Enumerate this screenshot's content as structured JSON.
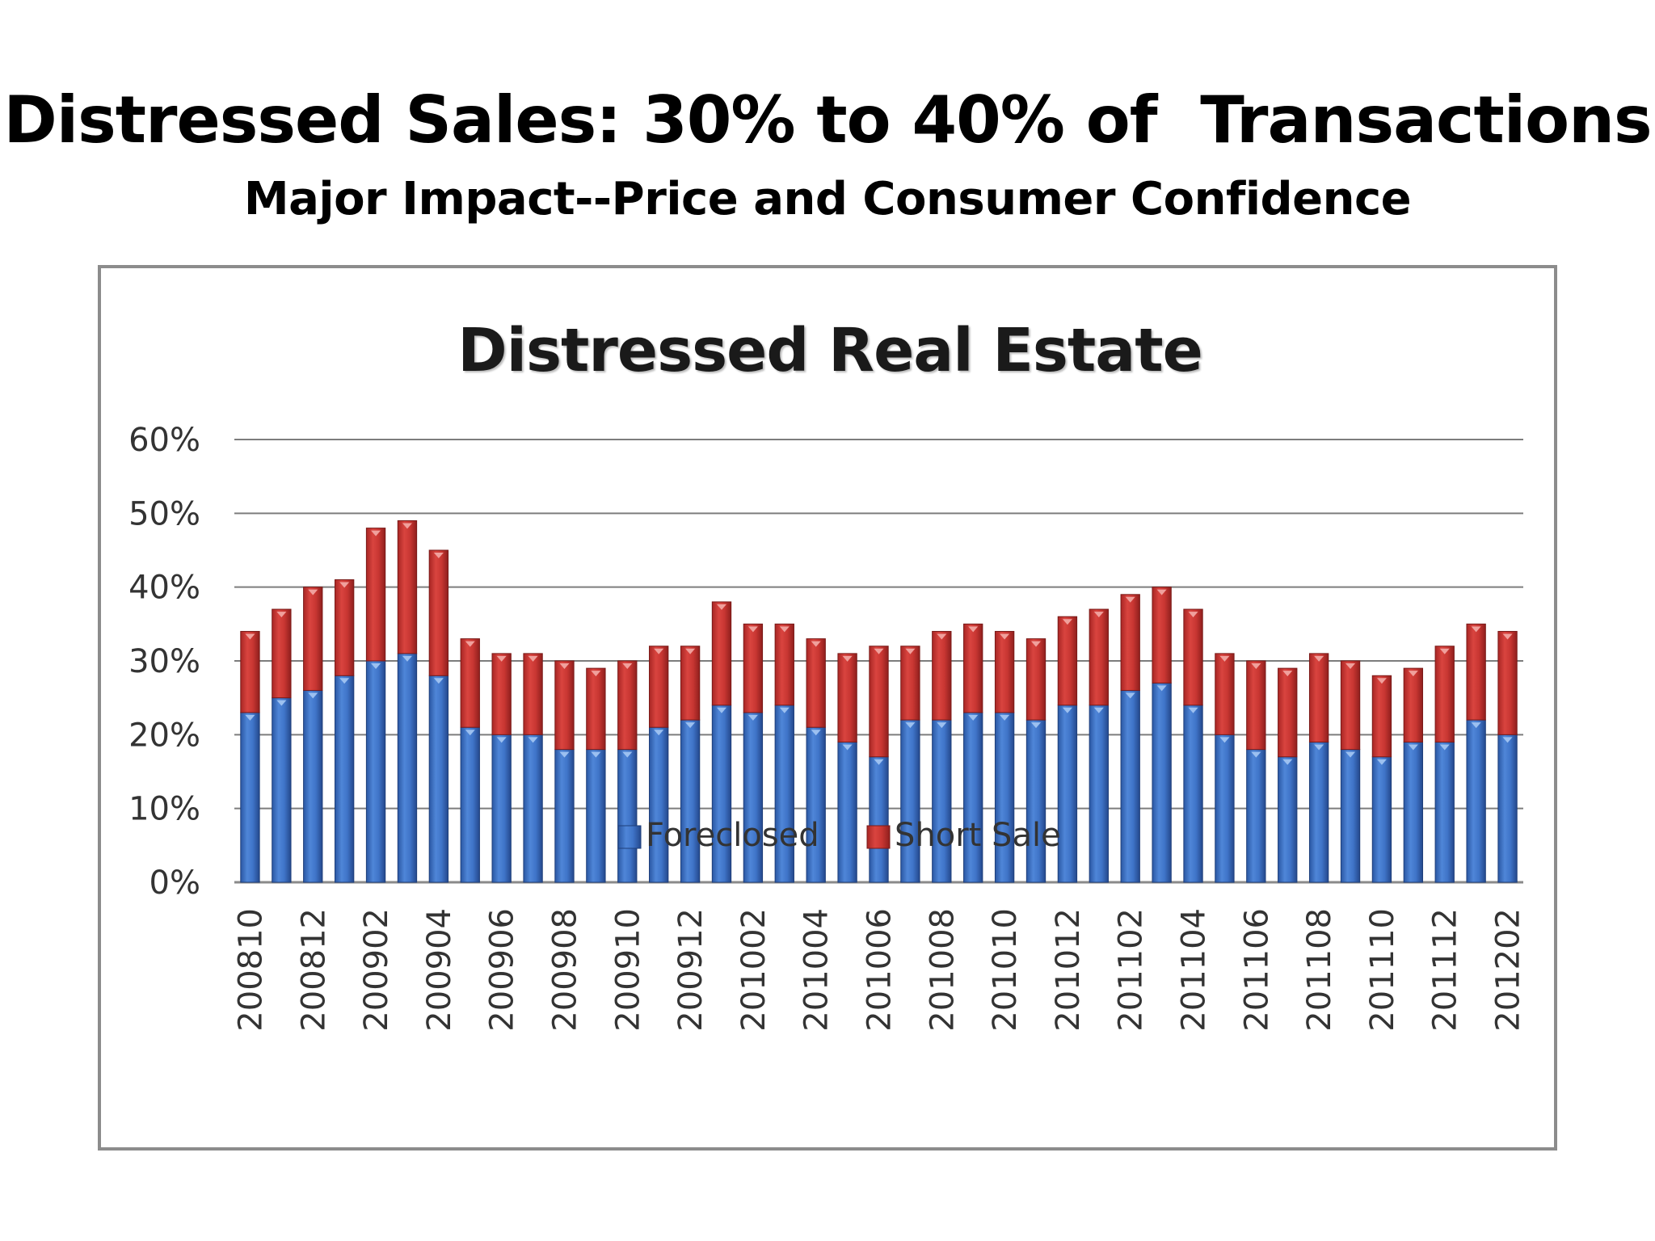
{
  "slide": {
    "title": "Distressed Sales: 30% to 40% of  Transactions",
    "subtitle": "Major Impact--Price and Consumer Confidence"
  },
  "chart_data": {
    "type": "bar",
    "stacked": true,
    "title": "Distressed Real Estate",
    "xlabel": "",
    "ylabel": "",
    "ylim": [
      0,
      0.6
    ],
    "y_ticks": [
      "0%",
      "10%",
      "20%",
      "30%",
      "40%",
      "50%",
      "60%"
    ],
    "grid": true,
    "legend_position": "bottom",
    "categories": [
      "200810",
      "200811",
      "200812",
      "200901",
      "200902",
      "200903",
      "200904",
      "200905",
      "200906",
      "200907",
      "200908",
      "200909",
      "200910",
      "200911",
      "200912",
      "201001",
      "201002",
      "201003",
      "201004",
      "201005",
      "201006",
      "201007",
      "201008",
      "201009",
      "201010",
      "201011",
      "201012",
      "201101",
      "201102",
      "201103",
      "201104",
      "201105",
      "201106",
      "201107",
      "201108",
      "201109",
      "201110",
      "201111",
      "201112",
      "201201",
      "201202"
    ],
    "shown_category_labels": [
      "200810",
      "200812",
      "200902",
      "200904",
      "200906",
      "200908",
      "200910",
      "200912",
      "201002",
      "201004",
      "201006",
      "201008",
      "201010",
      "201012",
      "201102",
      "201104",
      "201106",
      "201108",
      "201110",
      "201112",
      "201202"
    ],
    "series": [
      {
        "name": "Foreclosed",
        "color": "#3a6fc4",
        "values": [
          0.23,
          0.25,
          0.26,
          0.28,
          0.3,
          0.31,
          0.28,
          0.21,
          0.2,
          0.2,
          0.18,
          0.18,
          0.18,
          0.21,
          0.22,
          0.24,
          0.23,
          0.24,
          0.21,
          0.19,
          0.17,
          0.22,
          0.22,
          0.23,
          0.23,
          0.22,
          0.24,
          0.24,
          0.26,
          0.27,
          0.24,
          0.2,
          0.18,
          0.17,
          0.19,
          0.18,
          0.17,
          0.19,
          0.19,
          0.22,
          0.2
        ]
      },
      {
        "name": "Short Sale",
        "color": "#c3302f",
        "values": [
          0.11,
          0.12,
          0.14,
          0.13,
          0.18,
          0.18,
          0.17,
          0.12,
          0.11,
          0.11,
          0.12,
          0.11,
          0.12,
          0.11,
          0.1,
          0.14,
          0.12,
          0.11,
          0.12,
          0.12,
          0.15,
          0.1,
          0.12,
          0.12,
          0.11,
          0.11,
          0.12,
          0.13,
          0.13,
          0.13,
          0.13,
          0.11,
          0.12,
          0.12,
          0.12,
          0.12,
          0.11,
          0.1,
          0.13,
          0.13,
          0.14
        ]
      }
    ]
  }
}
